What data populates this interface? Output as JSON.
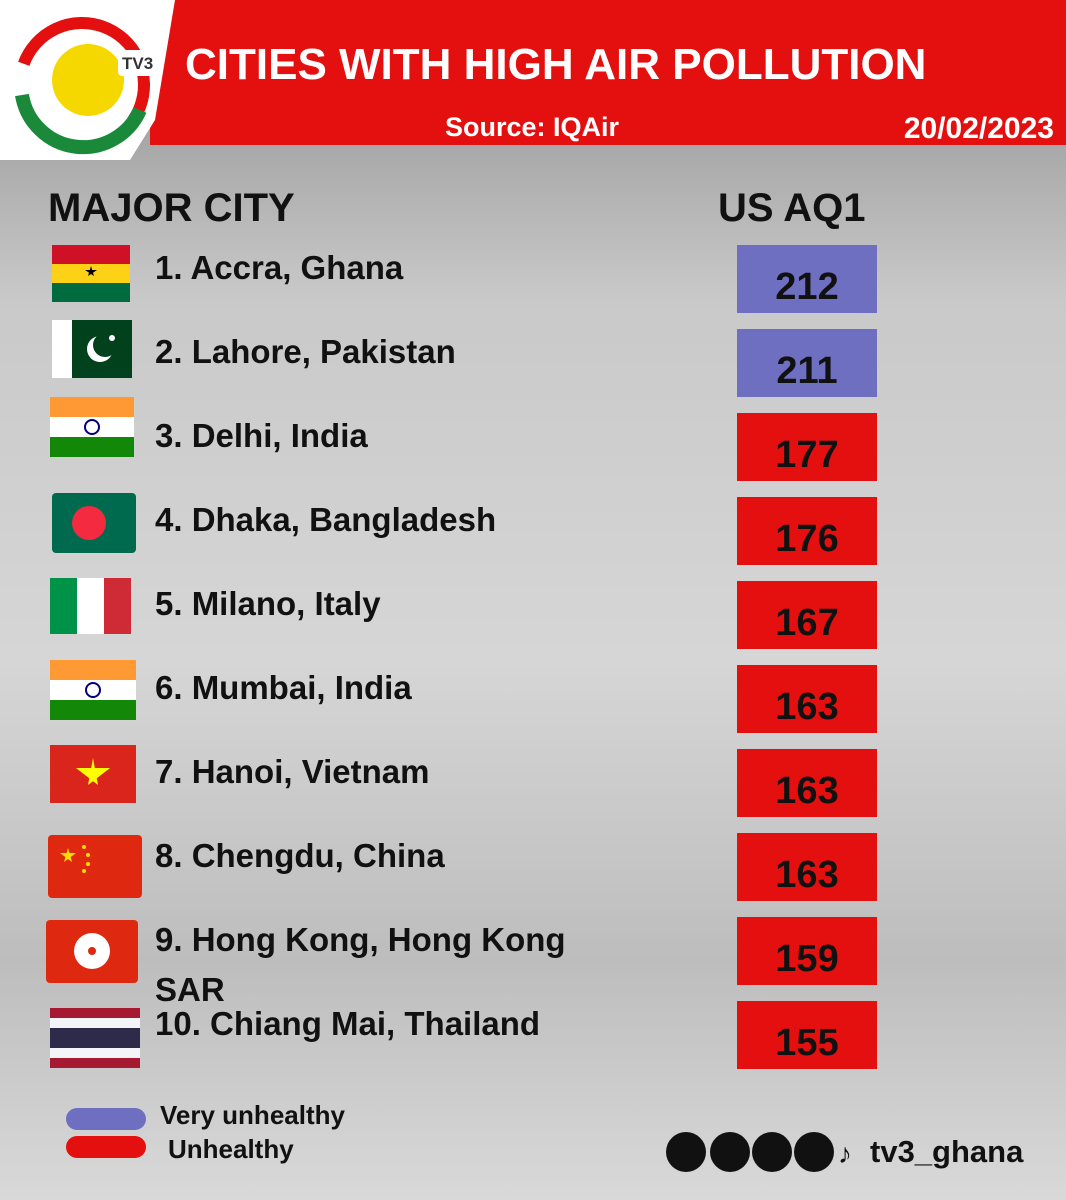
{
  "header": {
    "logo": "TV3",
    "title": "CITIES WITH HIGH AIR POLLUTION",
    "source": "Source: IQAir",
    "date": "20/02/2023"
  },
  "table": {
    "headers": [
      "MAJOR CITY",
      "US AQ1"
    ],
    "rows": [
      {
        "city": "1. Accra, Ghana",
        "aqi": 212,
        "color": "#6f6fc2"
      },
      {
        "city": "2. Lahore, Pakistan",
        "aqi": 211,
        "color": "#6f6fc2"
      },
      {
        "city": "3. Delhi, India",
        "aqi": 177,
        "color": "#e4100f"
      },
      {
        "city": "4. Dhaka, Bangladesh",
        "aqi": 176,
        "color": "#e4100f"
      },
      {
        "city": "5. Milano, Italy",
        "aqi": 167,
        "color": "#e4100f"
      },
      {
        "city": "6. Mumbai, India",
        "aqi": 163,
        "color": "#e4100f"
      },
      {
        "city": "7. Hanoi, Vietnam",
        "aqi": 163,
        "color": "#e4100f"
      },
      {
        "city": "8. Chengdu, China",
        "aqi": 163,
        "color": "#e4100f"
      },
      {
        "city": "9. Hong Kong, Hong Kong SAR",
        "aqi": 159,
        "color": "#e4100f"
      },
      {
        "city": "10. Chiang Mai, Thailand",
        "aqi": 155,
        "color": "#e4100f"
      }
    ]
  },
  "legend": [
    {
      "label": "Very unhealthy",
      "color": "#6f6fc2"
    },
    {
      "label": "Unhealthy",
      "color": "#e4100f"
    }
  ],
  "footer": {
    "handle": "tv3_ghana"
  }
}
